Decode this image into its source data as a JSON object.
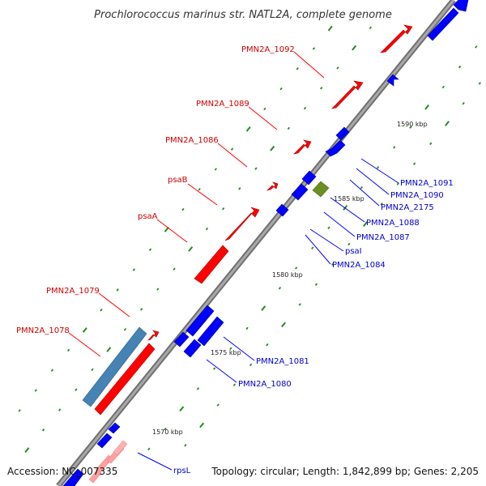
{
  "title": "Prochlorococcus marinus str. NATL2A, complete genome",
  "footer": {
    "accession": "Accession: NC_007335",
    "summary": "Topology: circular; Length: 1,842,899 bp; Genes: 2,205"
  },
  "colors": {
    "backbone": "#808080",
    "forward_cds": "#ff0000",
    "reverse_cds": "#0000ff",
    "pale_forward": "#ffa0a0",
    "steelblue_feature": "#4682b4",
    "olive_feature": "#6b8e23",
    "tick": "#228b22",
    "forward_label": "#cc0000",
    "reverse_label": "#0000cc"
  },
  "scale": {
    "unit": "kbp",
    "labels": [
      "1570 kbp",
      "1575 kbp",
      "1580 kbp",
      "1585 kbp",
      "1590 kbp"
    ]
  },
  "labels_forward": [
    {
      "name": "PMN2A_1092"
    },
    {
      "name": "PMN2A_1089"
    },
    {
      "name": "PMN2A_1086"
    },
    {
      "name": "psaB"
    },
    {
      "name": "psaA"
    },
    {
      "name": "PMN2A_1079"
    },
    {
      "name": "PMN2A_1078"
    }
  ],
  "labels_reverse": [
    {
      "name": "PMN2A_1091"
    },
    {
      "name": "PMN2A_1090"
    },
    {
      "name": "PMN2A_2175"
    },
    {
      "name": "PMN2A_1088"
    },
    {
      "name": "PMN2A_1087"
    },
    {
      "name": "psaI"
    },
    {
      "name": "PMN2A_1084"
    },
    {
      "name": "PMN2A_1081"
    },
    {
      "name": "PMN2A_1080"
    },
    {
      "name": "rpsL"
    }
  ]
}
